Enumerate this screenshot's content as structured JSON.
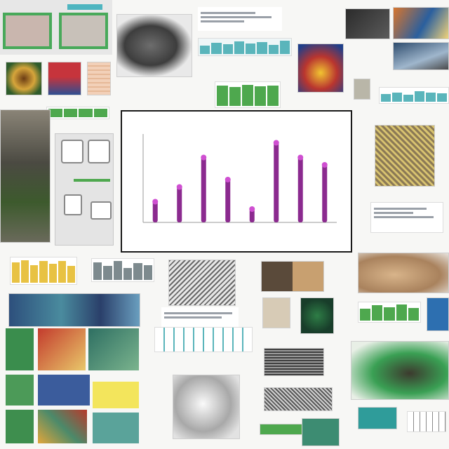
{
  "collage": {
    "title": ""
  },
  "chart_data": {
    "type": "bar",
    "title": "",
    "xlabel": "",
    "ylabel": "",
    "categories": [
      "",
      "",
      "",
      "",
      "",
      "",
      "",
      ""
    ],
    "values": [
      3,
      5,
      9,
      6,
      2,
      11,
      9,
      8
    ],
    "ylim": [
      0,
      12
    ],
    "bar_color": "#8b2a8f",
    "accent_color": "#cf4fd1",
    "grid": false,
    "legend": "none"
  },
  "colors": {
    "background": "#f7f7f5",
    "green_accent": "#3aa548",
    "teal_accent": "#3aa0a8",
    "yellow_accent": "#e0c020"
  },
  "thumbnails": [
    {
      "kind": "green-framed-panel"
    },
    {
      "kind": "grey-organic-photo"
    },
    {
      "kind": "teal-bar-strip"
    },
    {
      "kind": "photo-collage"
    },
    {
      "kind": "yellow-bar-strip"
    },
    {
      "kind": "line-strip"
    },
    {
      "kind": "green-figure"
    }
  ]
}
